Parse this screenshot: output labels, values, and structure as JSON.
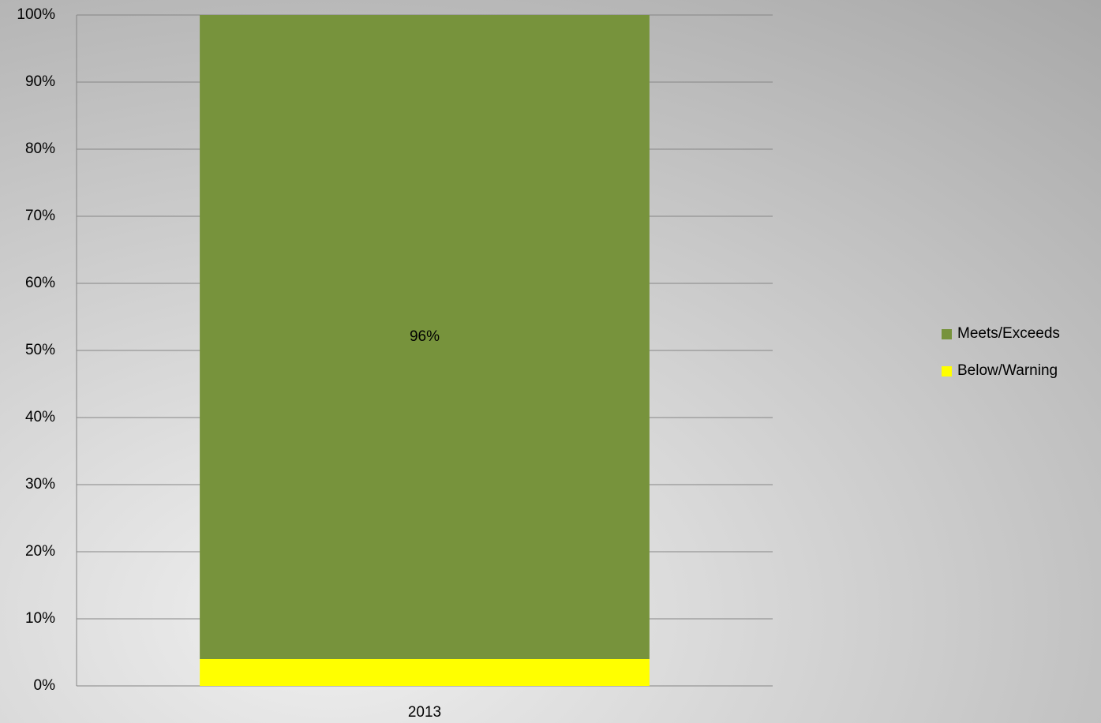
{
  "chart_data": {
    "type": "stacked_bar",
    "categories": [
      "2013"
    ],
    "series": [
      {
        "name": "Meets/Exceeds",
        "color": "#77933c",
        "values": [
          96
        ],
        "value_labels": [
          "96%"
        ]
      },
      {
        "name": "Below/Warning",
        "color": "#ffff00",
        "values": [
          4
        ]
      }
    ],
    "ylim": [
      0,
      100
    ],
    "yticks": [
      {
        "value": 0,
        "label": "0%"
      },
      {
        "value": 10,
        "label": "10%"
      },
      {
        "value": 20,
        "label": "20%"
      },
      {
        "value": 30,
        "label": "30%"
      },
      {
        "value": 40,
        "label": "40%"
      },
      {
        "value": 50,
        "label": "50%"
      },
      {
        "value": 60,
        "label": "60%"
      },
      {
        "value": 70,
        "label": "70%"
      },
      {
        "value": 80,
        "label": "80%"
      },
      {
        "value": 90,
        "label": "90%"
      },
      {
        "value": 100,
        "label": "100%"
      }
    ],
    "grid": true,
    "legend": "right"
  }
}
